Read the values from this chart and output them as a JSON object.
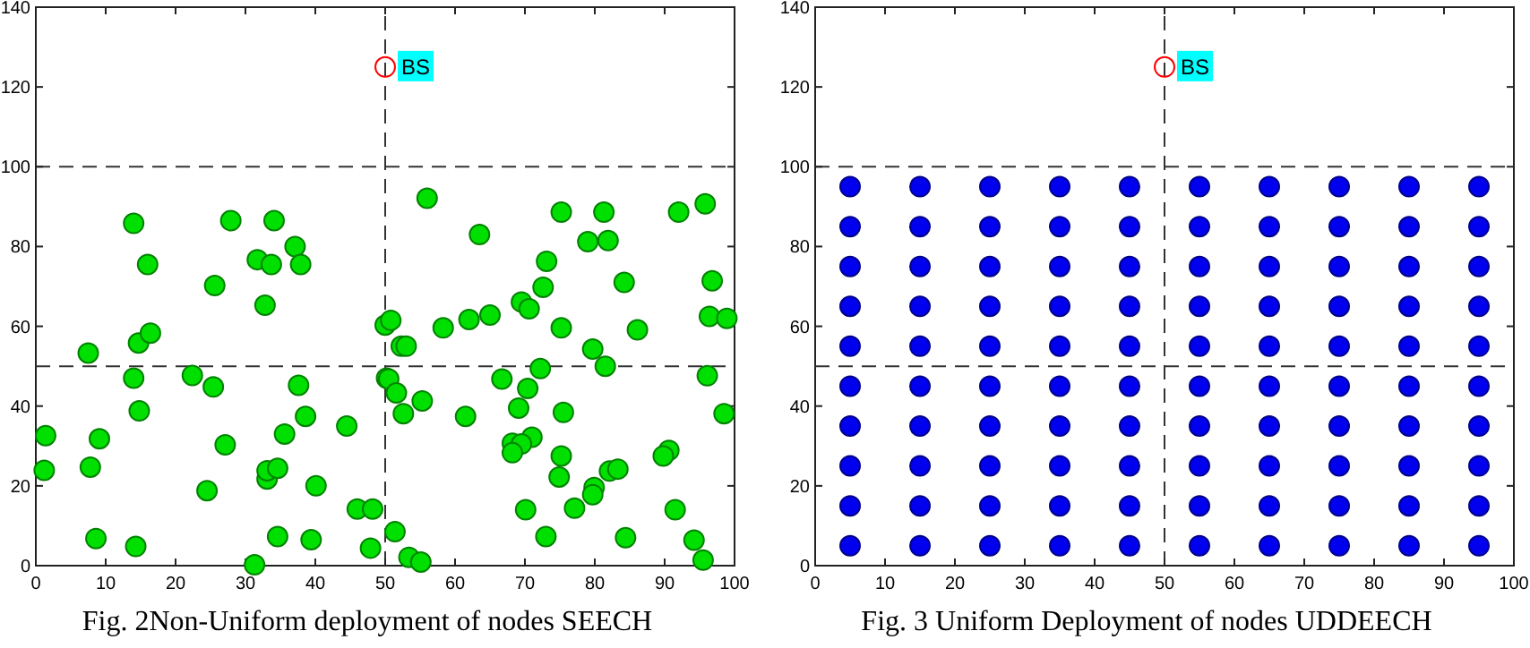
{
  "chart_data": [
    {
      "type": "scatter",
      "marker": "circle",
      "xlim": [
        0,
        100
      ],
      "ylim": [
        0,
        140
      ],
      "xticks": [
        0,
        10,
        20,
        30,
        40,
        50,
        60,
        70,
        80,
        90,
        100
      ],
      "yticks": [
        0,
        20,
        40,
        60,
        80,
        100,
        120,
        140
      ],
      "series": [
        {
          "color": "#00e000",
          "x": [
            14.0,
            27.9,
            34.1,
            37.1,
            31.7,
            33.7,
            37.9,
            16.0,
            25.6,
            32.8,
            50.0,
            7.5,
            14.7,
            16.4,
            14.0,
            22.4,
            25.4,
            37.6,
            50.2,
            14.8,
            38.6,
            35.6,
            27.1,
            44.5,
            1.4,
            1.2,
            7.8,
            9.1,
            33.1,
            33.1,
            34.6,
            24.5,
            40.1,
            46.0,
            48.2,
            8.6,
            14.3,
            34.6,
            39.4,
            31.3,
            47.9,
            56.0,
            95.8,
            92.0,
            81.3,
            75.2,
            63.5,
            79.0,
            81.9,
            73.1,
            96.8,
            84.2,
            72.6,
            69.5,
            70.6,
            65.0,
            62.0,
            96.4,
            98.9,
            50.8,
            58.3,
            75.2,
            86.1,
            52.3,
            53.0,
            79.7,
            81.5,
            72.2,
            50.5,
            66.7,
            96.1,
            51.6,
            70.4,
            55.3,
            52.6,
            69.1,
            75.5,
            98.5,
            61.5,
            71.0,
            68.2,
            69.5,
            68.2,
            75.2,
            90.6,
            89.8,
            74.9,
            82.1,
            83.3,
            79.9,
            79.7,
            70.1,
            77.1,
            91.5,
            51.4,
            73.0,
            84.4,
            94.2,
            53.4,
            55.1,
            95.5
          ],
          "values": [
            85.8,
            86.5,
            86.5,
            80,
            76.7,
            75.5,
            75.5,
            75.5,
            70.2,
            65.3,
            60.3,
            53.3,
            55.8,
            58.3,
            47,
            47.7,
            44.8,
            45.2,
            47,
            38.8,
            37.4,
            33,
            30.3,
            35,
            32.6,
            23.9,
            24.7,
            31.8,
            21.7,
            23.8,
            24.4,
            18.8,
            20,
            14.2,
            14.2,
            6.8,
            4.8,
            7.3,
            6.5,
            0.2,
            4.4,
            92.1,
            90.7,
            88.6,
            88.6,
            88.6,
            83,
            81.2,
            81.5,
            76.3,
            71.4,
            71,
            69.8,
            66.1,
            64.4,
            62.8,
            61.7,
            62.5,
            62,
            61.5,
            59.6,
            59.6,
            59.1,
            55,
            55,
            54.3,
            50,
            49.4,
            46.8,
            46.8,
            47.6,
            43.3,
            44.4,
            41.3,
            38.1,
            39.5,
            38.4,
            38.1,
            37.4,
            32.2,
            30.7,
            30.5,
            28.3,
            27.5,
            28.9,
            27.5,
            22.2,
            23.7,
            24.2,
            19.6,
            17.8,
            14,
            14.4,
            14,
            8.5,
            7.3,
            7,
            6.4,
            2.1,
            0.9,
            1.4
          ]
        },
        {
          "name": "BS",
          "color": "#ff0000",
          "x": [
            50
          ],
          "values": [
            125
          ]
        }
      ],
      "ref_lines": [
        {
          "axis": "y",
          "value": 100,
          "line_style": "dashed"
        },
        {
          "axis": "y",
          "value": 50,
          "line_style": "dashed"
        },
        {
          "axis": "x",
          "value": 50,
          "line_style": "dashed"
        }
      ],
      "annotations": [
        "Fig. 2Non-Uniform deployment of nodes SEECH"
      ]
    },
    {
      "type": "scatter",
      "marker": "circle",
      "xlim": [
        0,
        100
      ],
      "ylim": [
        0,
        140
      ],
      "xticks": [
        0,
        10,
        20,
        30,
        40,
        50,
        60,
        70,
        80,
        90,
        100
      ],
      "yticks": [
        0,
        20,
        40,
        60,
        80,
        100,
        120,
        140
      ],
      "series": [
        {
          "color": "#0000ee",
          "x": [
            5,
            5,
            5,
            5,
            5,
            5,
            5,
            5,
            5,
            5,
            15,
            15,
            15,
            15,
            15,
            15,
            15,
            15,
            15,
            15,
            25,
            25,
            25,
            25,
            25,
            25,
            25,
            25,
            25,
            25,
            35,
            35,
            35,
            35,
            35,
            35,
            35,
            35,
            35,
            35,
            45,
            45,
            45,
            45,
            45,
            45,
            45,
            45,
            45,
            45,
            55,
            55,
            55,
            55,
            55,
            55,
            55,
            55,
            55,
            55,
            65,
            65,
            65,
            65,
            65,
            65,
            65,
            65,
            65,
            65,
            75,
            75,
            75,
            75,
            75,
            75,
            75,
            75,
            75,
            75,
            85,
            85,
            85,
            85,
            85,
            85,
            85,
            85,
            85,
            85,
            95,
            95,
            95,
            95,
            95,
            95,
            95,
            95,
            95,
            95
          ],
          "values": [
            5,
            15,
            25,
            35,
            45,
            55,
            65,
            75,
            85,
            95,
            5,
            15,
            25,
            35,
            45,
            55,
            65,
            75,
            85,
            95,
            5,
            15,
            25,
            35,
            45,
            55,
            65,
            75,
            85,
            95,
            5,
            15,
            25,
            35,
            45,
            55,
            65,
            75,
            85,
            95,
            5,
            15,
            25,
            35,
            45,
            55,
            65,
            75,
            85,
            95,
            5,
            15,
            25,
            35,
            45,
            55,
            65,
            75,
            85,
            95,
            5,
            15,
            25,
            35,
            45,
            55,
            65,
            75,
            85,
            95,
            5,
            15,
            25,
            35,
            45,
            55,
            65,
            75,
            85,
            95,
            5,
            15,
            25,
            35,
            45,
            55,
            65,
            75,
            85,
            95,
            5,
            15,
            25,
            35,
            45,
            55,
            65,
            75,
            85,
            95
          ]
        },
        {
          "name": "BS",
          "color": "#ff0000",
          "x": [
            50
          ],
          "values": [
            125
          ]
        }
      ],
      "ref_lines": [
        {
          "axis": "y",
          "value": 100,
          "line_style": "dashed"
        },
        {
          "axis": "y",
          "value": 50,
          "line_style": "dashed"
        },
        {
          "axis": "x",
          "value": 50,
          "line_style": "dashed"
        }
      ],
      "annotations": [
        "Fig. 3 Uniform Deployment of nodes UDDEECH"
      ]
    }
  ]
}
